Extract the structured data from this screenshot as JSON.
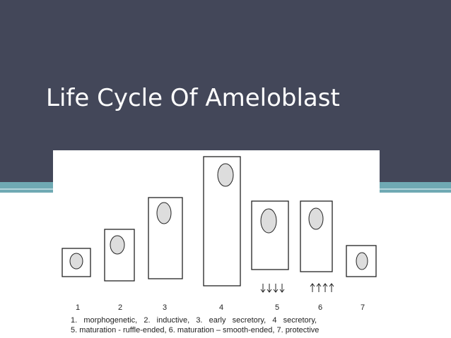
{
  "slide": {
    "title": "Life Cycle Of Ameloblast",
    "figure": {
      "stage_numbers": [
        "1",
        "2",
        "3",
        "4",
        "5",
        "6",
        "7"
      ],
      "caption": [
        "1.   morphogenetic,   2.   inductive,   3.   early   secretory,   4   secretory,",
        "5. maturation - ruffle-ended, 6. maturation – smooth-ended, 7. protective"
      ]
    }
  }
}
